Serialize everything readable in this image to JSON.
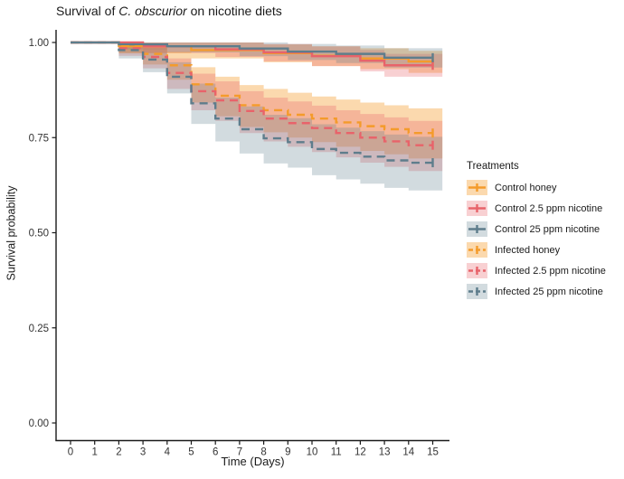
{
  "title": {
    "prefix": "Survival of ",
    "italic": "C. obscurior",
    "suffix": " on nicotine diets"
  },
  "chart_data": {
    "type": "line",
    "subtype": "kaplan-meier-step-with-ci-ribbons",
    "title": "Survival of C. obscurior on nicotine diets",
    "xlabel": "Time (Days)",
    "ylabel": "Survival probability",
    "legend_title": "Treatments",
    "legend_position": "right",
    "grid": false,
    "xlim": [
      0,
      15.4
    ],
    "ylim": [
      0,
      1
    ],
    "xticks": [
      "0",
      "1",
      "2",
      "3",
      "4",
      "5",
      "6",
      "7",
      "8",
      "9",
      "10",
      "11",
      "12",
      "13",
      "14",
      "15"
    ],
    "yticks": [
      {
        "v": 0.0,
        "label": "0.00"
      },
      {
        "v": 0.25,
        "label": "0.25"
      },
      {
        "v": 0.5,
        "label": "0.50"
      },
      {
        "v": 0.75,
        "label": "0.75"
      },
      {
        "v": 1.0,
        "label": "1.00"
      }
    ],
    "axis_color": "#1a1a1a",
    "tick_label_color": "#333333",
    "censor_marker": "plus at day 15 on every curve",
    "ribbon_end_day": 15.4,
    "series": [
      {
        "name": "Control honey",
        "color": "#F49B2B",
        "ribbon": "rgba(244,155,43,0.38)",
        "dashed": false,
        "steps": [
          [
            0,
            1.0,
            1.0,
            1.0
          ],
          [
            2,
            0.99,
            0.972,
            1.0
          ],
          [
            5,
            0.98,
            0.958,
            1.0
          ],
          [
            8,
            0.972,
            0.948,
            0.995
          ],
          [
            10,
            0.965,
            0.938,
            0.99
          ],
          [
            12,
            0.958,
            0.93,
            0.985
          ],
          [
            14,
            0.95,
            0.92,
            0.978
          ]
        ]
      },
      {
        "name": "Control 2.5 ppm nicotine",
        "color": "#E8636A",
        "ribbon": "rgba(232,99,106,0.30)",
        "dashed": false,
        "steps": [
          [
            0,
            1.0,
            1.0,
            1.0
          ],
          [
            3,
            0.99,
            0.972,
            1.0
          ],
          [
            6,
            0.982,
            0.962,
            1.0
          ],
          [
            8,
            0.974,
            0.95,
            0.996
          ],
          [
            10,
            0.964,
            0.938,
            0.99
          ],
          [
            12,
            0.952,
            0.924,
            0.98
          ],
          [
            13,
            0.94,
            0.91,
            0.97
          ]
        ]
      },
      {
        "name": "Control 25 ppm nicotine",
        "color": "#5E7D8C",
        "ribbon": "rgba(94,125,140,0.28)",
        "dashed": false,
        "steps": [
          [
            0,
            1.0,
            1.0,
            1.0
          ],
          [
            2,
            0.995,
            0.982,
            1.0
          ],
          [
            4,
            0.99,
            0.974,
            1.0
          ],
          [
            7,
            0.984,
            0.964,
            1.0
          ],
          [
            9,
            0.976,
            0.954,
            0.996
          ],
          [
            11,
            0.97,
            0.946,
            0.992
          ],
          [
            13,
            0.96,
            0.934,
            0.985
          ]
        ]
      },
      {
        "name": "Infected honey",
        "color": "#F49B2B",
        "ribbon": "rgba(244,155,43,0.38)",
        "dashed": true,
        "steps": [
          [
            0,
            1.0,
            1.0,
            1.0
          ],
          [
            2,
            0.99,
            0.972,
            1.0
          ],
          [
            3,
            0.97,
            0.942,
            0.996
          ],
          [
            4,
            0.94,
            0.902,
            0.975
          ],
          [
            5,
            0.89,
            0.842,
            0.935
          ],
          [
            6,
            0.86,
            0.806,
            0.91
          ],
          [
            7,
            0.835,
            0.778,
            0.888
          ],
          [
            8,
            0.822,
            0.764,
            0.878
          ],
          [
            9,
            0.81,
            0.75,
            0.868
          ],
          [
            10,
            0.8,
            0.738,
            0.858
          ],
          [
            11,
            0.79,
            0.726,
            0.85
          ],
          [
            12,
            0.78,
            0.715,
            0.842
          ],
          [
            13,
            0.772,
            0.706,
            0.835
          ],
          [
            14,
            0.762,
            0.695,
            0.827
          ]
        ]
      },
      {
        "name": "Infected 2.5 ppm nicotine",
        "color": "#E8636A",
        "ribbon": "rgba(232,99,106,0.30)",
        "dashed": true,
        "steps": [
          [
            0,
            1.0,
            1.0,
            1.0
          ],
          [
            2,
            0.985,
            0.965,
            1.0
          ],
          [
            3,
            0.962,
            0.932,
            0.99
          ],
          [
            4,
            0.92,
            0.878,
            0.958
          ],
          [
            5,
            0.872,
            0.822,
            0.918
          ],
          [
            6,
            0.848,
            0.794,
            0.898
          ],
          [
            7,
            0.82,
            0.762,
            0.872
          ],
          [
            8,
            0.8,
            0.74,
            0.855
          ],
          [
            9,
            0.788,
            0.726,
            0.845
          ],
          [
            10,
            0.775,
            0.712,
            0.834
          ],
          [
            11,
            0.762,
            0.698,
            0.822
          ],
          [
            12,
            0.75,
            0.684,
            0.812
          ],
          [
            13,
            0.74,
            0.673,
            0.803
          ],
          [
            14,
            0.73,
            0.662,
            0.794
          ]
        ]
      },
      {
        "name": "Infected 25 ppm nicotine",
        "color": "#5E7D8C",
        "ribbon": "rgba(94,125,140,0.28)",
        "dashed": true,
        "steps": [
          [
            0,
            1.0,
            1.0,
            1.0
          ],
          [
            2,
            0.98,
            0.958,
            1.0
          ],
          [
            3,
            0.955,
            0.922,
            0.985
          ],
          [
            4,
            0.91,
            0.866,
            0.948
          ],
          [
            5,
            0.84,
            0.786,
            0.892
          ],
          [
            6,
            0.8,
            0.74,
            0.855
          ],
          [
            7,
            0.772,
            0.708,
            0.832
          ],
          [
            8,
            0.748,
            0.682,
            0.81
          ],
          [
            9,
            0.738,
            0.671,
            0.801
          ],
          [
            10,
            0.72,
            0.651,
            0.785
          ],
          [
            11,
            0.71,
            0.64,
            0.776
          ],
          [
            12,
            0.7,
            0.629,
            0.767
          ],
          [
            13,
            0.69,
            0.618,
            0.758
          ],
          [
            14,
            0.684,
            0.611,
            0.752
          ]
        ]
      }
    ]
  }
}
